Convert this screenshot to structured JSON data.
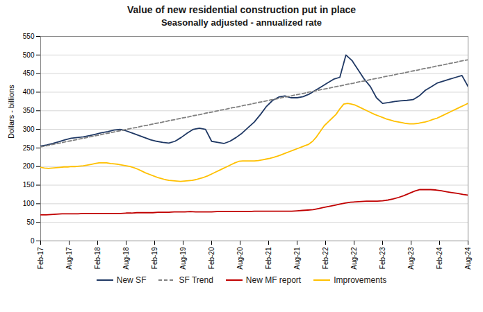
{
  "chart_data": {
    "type": "line",
    "title": "Value of new residential construction put in place",
    "subtitle": "Seasonally adjusted - annualized rate",
    "y_label": "Dollars - billions",
    "xlim": [
      0,
      90
    ],
    "xticks": [
      {
        "value": 0,
        "label": "Feb-17"
      },
      {
        "value": 6,
        "label": "Aug-17"
      },
      {
        "value": 12,
        "label": "Feb-18"
      },
      {
        "value": 18,
        "label": "Aug-18"
      },
      {
        "value": 24,
        "label": "Feb-19"
      },
      {
        "value": 30,
        "label": "Aug-19"
      },
      {
        "value": 36,
        "label": "Feb-20"
      },
      {
        "value": 42,
        "label": "Aug-20"
      },
      {
        "value": 48,
        "label": "Feb-21"
      },
      {
        "value": 54,
        "label": "Aug-21"
      },
      {
        "value": 60,
        "label": "Feb-22"
      },
      {
        "value": 66,
        "label": "Aug-22"
      },
      {
        "value": 72,
        "label": "Feb-23"
      },
      {
        "value": 78,
        "label": "Aug-23"
      },
      {
        "value": 84,
        "label": "Feb-24"
      },
      {
        "value": 90,
        "label": "Aug-24"
      }
    ],
    "ylim": [
      0,
      550
    ],
    "yticks": [
      0,
      50,
      100,
      150,
      200,
      250,
      300,
      350,
      400,
      450,
      500,
      550
    ],
    "grid": "y",
    "legend": "bottom",
    "series": [
      {
        "name": "New SF",
        "color": "#1F3864",
        "line_style": "solid",
        "values": [
          255,
          258,
          262,
          267,
          272,
          276,
          278,
          280,
          283,
          287,
          291,
          294,
          298,
          300,
          296,
          290,
          284,
          278,
          272,
          268,
          265,
          263,
          268,
          278,
          290,
          300,
          303,
          300,
          268,
          265,
          262,
          268,
          278,
          290,
          305,
          320,
          340,
          362,
          378,
          387,
          390,
          385,
          385,
          388,
          395,
          405,
          415,
          425,
          435,
          440,
          500,
          485,
          460,
          435,
          415,
          385,
          370,
          372,
          375,
          377,
          378,
          380,
          390,
          405,
          415,
          425,
          430,
          435,
          440,
          445,
          415
        ]
      },
      {
        "name": "SF Trend",
        "color": "#808080",
        "line_style": "dashed",
        "values": [
          253,
          256,
          260,
          263,
          267,
          270,
          274,
          277,
          281,
          284,
          288,
          291,
          295,
          298,
          302,
          305,
          309,
          312,
          316,
          319,
          323,
          326,
          330,
          333,
          337,
          340,
          344,
          347,
          351,
          354,
          358,
          361,
          365,
          368,
          372,
          375,
          379,
          382,
          386,
          389,
          393,
          396,
          400,
          403,
          407,
          410,
          414,
          417,
          421,
          424,
          428,
          431,
          435,
          438,
          442,
          445,
          449,
          452,
          456,
          459,
          463,
          466,
          470,
          473,
          477,
          480,
          484,
          487
        ]
      },
      {
        "name": "New MF report",
        "color": "#C00000",
        "line_style": "solid",
        "values": [
          70,
          70,
          71,
          72,
          73,
          73,
          73,
          73,
          74,
          74,
          74,
          74,
          74,
          74,
          74,
          74,
          75,
          75,
          76,
          76,
          76,
          76,
          77,
          77,
          77,
          78,
          78,
          78,
          79,
          78,
          78,
          78,
          78,
          79,
          79,
          79,
          79,
          79,
          79,
          79,
          80,
          80,
          80,
          80,
          80,
          80,
          80,
          80,
          81,
          82,
          83,
          84,
          87,
          90,
          93,
          96,
          99,
          102,
          104,
          105,
          106,
          107,
          107,
          107,
          108,
          110,
          113,
          117,
          122,
          128,
          134,
          138,
          138,
          138,
          137,
          135,
          132,
          130,
          128,
          125,
          123
        ]
      },
      {
        "name": "Improvements",
        "color": "#FFC000",
        "line_style": "solid",
        "values": [
          198,
          196,
          195,
          196,
          197,
          198,
          199,
          199,
          200,
          200,
          201,
          202,
          204,
          206,
          208,
          210,
          210,
          210,
          208,
          207,
          206,
          204,
          202,
          200,
          197,
          193,
          188,
          183,
          179,
          175,
          171,
          168,
          165,
          163,
          162,
          161,
          160,
          161,
          162,
          163,
          165,
          168,
          171,
          175,
          180,
          185,
          190,
          195,
          200,
          205,
          210,
          214,
          215,
          215,
          215,
          215,
          216,
          218,
          220,
          222,
          225,
          228,
          232,
          236,
          240,
          244,
          248,
          252,
          256,
          260,
          268,
          280,
          295,
          310,
          320,
          330,
          340,
          355,
          368,
          370,
          368,
          365,
          360,
          355,
          350,
          345,
          340,
          336,
          332,
          328,
          325,
          322,
          320,
          318,
          316,
          315,
          315,
          316,
          318,
          320,
          323,
          327,
          330,
          335,
          340,
          345,
          350,
          355,
          360,
          365,
          370
        ]
      }
    ]
  }
}
